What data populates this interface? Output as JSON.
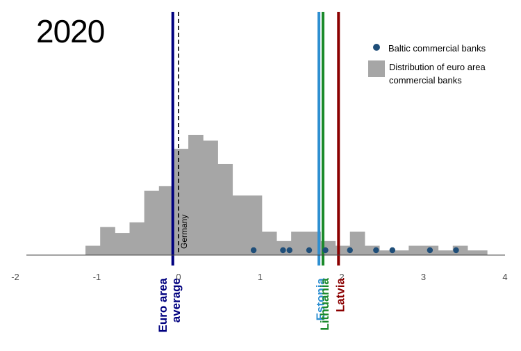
{
  "chart_data": {
    "type": "histogram",
    "panel_label": "2020",
    "xlim": [
      -2,
      4
    ],
    "x_ticks": [
      -2,
      -1,
      0,
      1,
      2,
      3,
      4
    ],
    "x_tick_labels": [
      "-2",
      "-1",
      "0",
      "1",
      "2",
      "3",
      "4"
    ],
    "grid": false,
    "legend_position": "top-right",
    "histogram": {
      "name": "Distribution of euro area commercial banks",
      "color": "#a6a6a6",
      "bin_width": 0.18,
      "bins": [
        {
          "x0": -1.14,
          "x1": -0.96,
          "h": 0.08
        },
        {
          "x0": -0.96,
          "x1": -0.78,
          "h": 0.24
        },
        {
          "x0": -0.78,
          "x1": -0.6,
          "h": 0.19
        },
        {
          "x0": -0.6,
          "x1": -0.42,
          "h": 0.28
        },
        {
          "x0": -0.42,
          "x1": -0.24,
          "h": 0.55
        },
        {
          "x0": -0.24,
          "x1": -0.06,
          "h": 0.59
        },
        {
          "x0": -0.06,
          "x1": 0.12,
          "h": 0.91
        },
        {
          "x0": 0.12,
          "x1": 0.3,
          "h": 1.03
        },
        {
          "x0": 0.3,
          "x1": 0.48,
          "h": 0.98
        },
        {
          "x0": 0.48,
          "x1": 0.66,
          "h": 0.78
        },
        {
          "x0": 0.66,
          "x1": 1.02,
          "h": 0.51
        },
        {
          "x0": 1.02,
          "x1": 1.2,
          "h": 0.2
        },
        {
          "x0": 1.2,
          "x1": 1.38,
          "h": 0.12
        },
        {
          "x0": 1.38,
          "x1": 1.74,
          "h": 0.2
        },
        {
          "x0": 1.74,
          "x1": 1.92,
          "h": 0.12
        },
        {
          "x0": 1.92,
          "x1": 2.1,
          "h": 0.08
        },
        {
          "x0": 2.1,
          "x1": 2.28,
          "h": 0.2
        },
        {
          "x0": 2.28,
          "x1": 2.46,
          "h": 0.08
        },
        {
          "x0": 2.46,
          "x1": 2.64,
          "h": 0.04
        },
        {
          "x0": 2.64,
          "x1": 2.82,
          "h": 0.04
        },
        {
          "x0": 2.82,
          "x1": 3.18,
          "h": 0.08
        },
        {
          "x0": 3.18,
          "x1": 3.36,
          "h": 0.04
        },
        {
          "x0": 3.36,
          "x1": 3.54,
          "h": 0.08
        },
        {
          "x0": 3.54,
          "x1": 3.78,
          "h": 0.04
        }
      ]
    },
    "points": {
      "name": "Baltic commercial banks",
      "color": "#1f4e79",
      "x": [
        0.92,
        1.28,
        1.36,
        1.6,
        1.8,
        2.1,
        2.42,
        2.62,
        3.08,
        3.4
      ]
    },
    "reference_lines": [
      {
        "label": "Euro area average",
        "label_lines": [
          "Euro area",
          "average"
        ],
        "x": -0.07,
        "color": "#00007f",
        "style": "solid",
        "label_placement": "axis"
      },
      {
        "label": "Germany",
        "x": 0.0,
        "color": "#000000",
        "style": "dashed",
        "label_placement": "inside"
      },
      {
        "label": "Estonia",
        "x": 1.72,
        "color": "#2e8fd1",
        "style": "solid",
        "label_placement": "axis"
      },
      {
        "label": "Lithuania",
        "x": 1.77,
        "color": "#1a8a2a",
        "style": "solid",
        "label_placement": "axis"
      },
      {
        "label": "Latvia",
        "x": 1.96,
        "color": "#8b0000",
        "style": "solid",
        "label_placement": "axis"
      }
    ],
    "legend": [
      {
        "label": "Baltic commercial banks",
        "marker": "dot",
        "color": "#1f4e79"
      },
      {
        "label": "Distribution of euro area commercial banks",
        "marker": "box",
        "color": "#a6a6a6"
      }
    ]
  }
}
